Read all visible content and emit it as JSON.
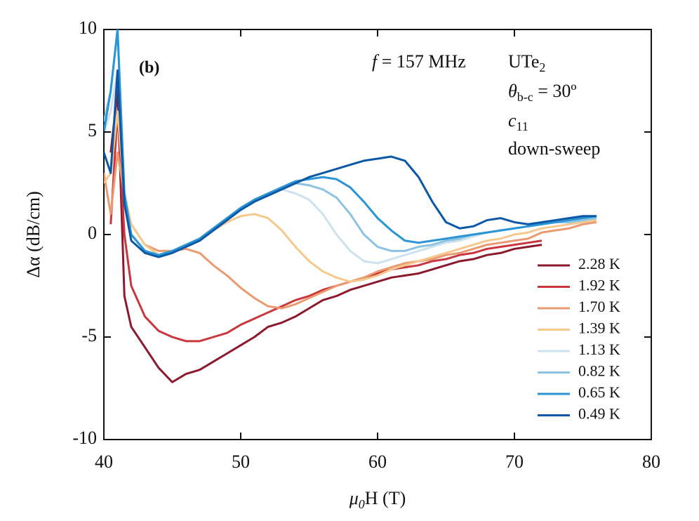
{
  "chart_data": {
    "type": "line",
    "panel_label": "(b)",
    "annotations": [
      {
        "text": "f",
        "rest": " = 157 MHz"
      },
      {
        "text": "UTe",
        "sub": "2"
      },
      {
        "text": "θ",
        "sub": "b-c",
        "rest": " = 30º"
      },
      {
        "text": "c",
        "sub": "11"
      },
      {
        "text": "down-sweep"
      }
    ],
    "ylabel": "Δα (dB/cm)",
    "xlabel": {
      "text": "μ",
      "sub": "0",
      "rest": "H (T)"
    },
    "xlim": [
      40,
      80
    ],
    "xticks": [
      40,
      50,
      60,
      70,
      80
    ],
    "ylim": [
      -10,
      10
    ],
    "yticks": [
      -10,
      -5,
      0,
      5,
      10
    ],
    "x": [
      40,
      40.5,
      41,
      41.5,
      42,
      43,
      44,
      45,
      46,
      47,
      48,
      49,
      50,
      51,
      52,
      53,
      54,
      55,
      56,
      57,
      58,
      59,
      60,
      61,
      62,
      63,
      64,
      65,
      66,
      67,
      68,
      69,
      70,
      71,
      72,
      73,
      74,
      75,
      76
    ],
    "series": [
      {
        "name": "2.28 K",
        "color": "#8b1a2e",
        "values": [
          null,
          4,
          7,
          -3,
          -4.5,
          -5.5,
          -6.5,
          -7.2,
          -6.8,
          -6.6,
          -6.2,
          -5.8,
          -5.4,
          -5.0,
          -4.5,
          -4.3,
          -4.0,
          -3.6,
          -3.2,
          -3.0,
          -2.7,
          -2.5,
          -2.3,
          -2.1,
          -2.0,
          -1.9,
          -1.7,
          -1.5,
          -1.3,
          -1.2,
          -1.0,
          -0.9,
          -0.7,
          -0.6,
          -0.5,
          null,
          null,
          null,
          null
        ]
      },
      {
        "name": "1.92 K",
        "color": "#c9363e",
        "values": [
          null,
          0.5,
          6,
          0,
          -2.5,
          -4.0,
          -4.7,
          -5.0,
          -5.2,
          -5.2,
          -5.0,
          -4.8,
          -4.4,
          -4.1,
          -3.8,
          -3.5,
          -3.2,
          -3.0,
          -2.7,
          -2.5,
          -2.3,
          -2.1,
          -1.9,
          -1.7,
          -1.6,
          -1.5,
          -1.3,
          -1.2,
          -1.0,
          -0.9,
          -0.7,
          -0.6,
          -0.5,
          -0.4,
          -0.3,
          null,
          null,
          null,
          null
        ]
      },
      {
        "name": "1.70 K",
        "color": "#eb9a70",
        "values": [
          3,
          1,
          4,
          2,
          0.5,
          -0.5,
          -0.8,
          -0.8,
          -0.7,
          -0.9,
          -1.5,
          -2.0,
          -2.6,
          -3.1,
          -3.5,
          -3.6,
          -3.4,
          -3.1,
          -2.8,
          -2.5,
          -2.3,
          -2.1,
          -1.8,
          -1.6,
          -1.4,
          -1.3,
          -1.2,
          -1.0,
          -0.9,
          -0.7,
          -0.5,
          -0.4,
          -0.3,
          -0.2,
          0.1,
          0.2,
          0.3,
          0.5,
          0.6
        ]
      },
      {
        "name": "1.39 K",
        "color": "#f5c98d",
        "values": [
          2.5,
          3,
          6,
          2,
          0.5,
          -0.5,
          -1.0,
          -0.8,
          -0.6,
          -0.3,
          0.2,
          0.6,
          0.9,
          1.0,
          0.8,
          0.2,
          -0.6,
          -1.3,
          -1.8,
          -2.1,
          -2.3,
          -2.2,
          -2.0,
          -1.7,
          -1.5,
          -1.3,
          -1.1,
          -0.9,
          -0.7,
          -0.5,
          -0.3,
          -0.2,
          0.0,
          0.1,
          0.3,
          0.4,
          0.5,
          0.6,
          0.7
        ]
      },
      {
        "name": "1.13 K",
        "color": "#cce2ee",
        "values": [
          5,
          6,
          8,
          2,
          0,
          -0.8,
          -1.0,
          -0.8,
          -0.5,
          -0.2,
          0.3,
          0.8,
          1.3,
          1.7,
          2.0,
          2.2,
          2.0,
          1.7,
          1.0,
          0.0,
          -0.8,
          -1.3,
          -1.4,
          -1.2,
          -1.0,
          -0.8,
          -0.6,
          -0.4,
          -0.3,
          -0.1,
          0.1,
          0.2,
          0.3,
          0.4,
          0.5,
          0.6,
          0.6,
          0.7,
          0.8
        ]
      },
      {
        "name": "0.82 K",
        "color": "#8cc3e2",
        "values": [
          5.5,
          7,
          10,
          2,
          0,
          -0.8,
          -1.0,
          -0.8,
          -0.5,
          -0.2,
          0.3,
          0.8,
          1.3,
          1.7,
          2.0,
          2.3,
          2.5,
          2.4,
          2.2,
          1.8,
          1.0,
          0.0,
          -0.6,
          -0.8,
          -0.8,
          -0.6,
          -0.5,
          -0.3,
          -0.2,
          0.0,
          0.1,
          0.2,
          0.3,
          0.4,
          0.5,
          0.6,
          0.6,
          0.7,
          0.8
        ]
      },
      {
        "name": "0.65 K",
        "color": "#2a94d4",
        "values": [
          5,
          7,
          10,
          2,
          0,
          -0.8,
          -1.0,
          -0.8,
          -0.5,
          -0.2,
          0.3,
          0.8,
          1.3,
          1.7,
          2.0,
          2.3,
          2.6,
          2.7,
          2.8,
          2.7,
          2.3,
          1.6,
          0.8,
          0.2,
          -0.3,
          -0.4,
          -0.3,
          -0.2,
          -0.1,
          0.0,
          0.1,
          0.2,
          0.3,
          0.4,
          0.5,
          0.6,
          0.7,
          0.8,
          0.9
        ]
      },
      {
        "name": "0.49 K",
        "color": "#0b58a6",
        "values": [
          4,
          3,
          8,
          1.5,
          -0.3,
          -0.9,
          -1.1,
          -0.9,
          -0.6,
          -0.3,
          0.2,
          0.7,
          1.2,
          1.6,
          1.9,
          2.2,
          2.5,
          2.8,
          3.0,
          3.2,
          3.4,
          3.6,
          3.7,
          3.8,
          3.6,
          2.8,
          1.6,
          0.6,
          0.3,
          0.4,
          0.7,
          0.8,
          0.6,
          0.5,
          0.6,
          0.7,
          0.8,
          0.9,
          0.9
        ]
      }
    ]
  }
}
